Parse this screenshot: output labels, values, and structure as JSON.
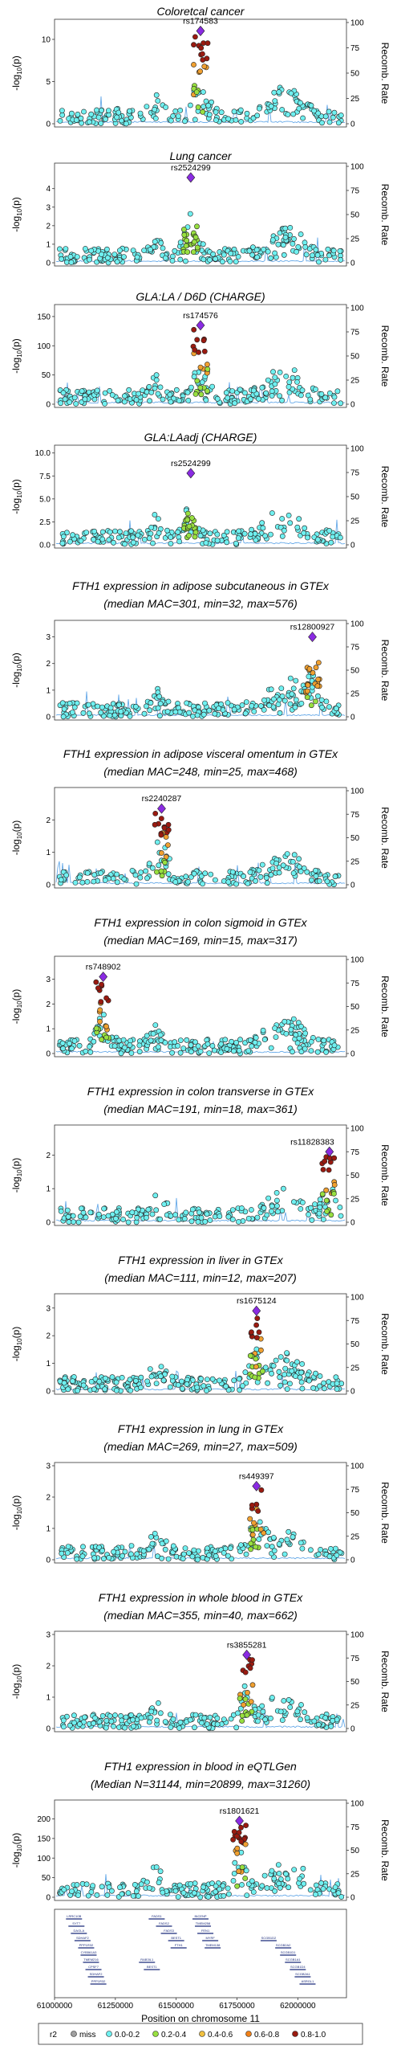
{
  "chart_data": {
    "type": "scatter",
    "description_axis": "Position on chromosome 11",
    "x_range": [
      61000000,
      62200000
    ],
    "x_ticks": [
      "61000000",
      "61250000",
      "61500000",
      "61750000",
      "62000000"
    ],
    "y_label": "-log10(p)",
    "y2_label": "Recomb. Rate",
    "y2_ticks": [
      "0",
      "25",
      "50",
      "75",
      "100"
    ],
    "panels": [
      {
        "title": "Coloretcal cancer",
        "lead": "rs174583",
        "lead_x": 61600000,
        "lead_y": 11.0,
        "ymax": 12,
        "yticks": [
          "0",
          "5",
          "10"
        ],
        "ytick_vals": [
          0,
          5,
          10
        ],
        "colors": [
          "red",
          "orange",
          "green",
          "cyan"
        ]
      },
      {
        "title": "Lung cancer",
        "lead": "rs2524299",
        "lead_x": 61560000,
        "lead_y": 4.6,
        "ymax": 5.2,
        "yticks": [
          "0",
          "1",
          "2",
          "3",
          "4"
        ],
        "ytick_vals": [
          0,
          1,
          2,
          3,
          4
        ],
        "colors": [
          "green",
          "cyan"
        ]
      },
      {
        "title": "GLA:LA / D6D (CHARGE)",
        "lead": "rs174576",
        "lead_x": 61600000,
        "lead_y": 135,
        "ymax": 165,
        "yticks": [
          "0",
          "50",
          "100",
          "150"
        ],
        "ytick_vals": [
          0,
          50,
          100,
          150
        ],
        "colors": [
          "red",
          "orange",
          "green",
          "cyan"
        ]
      },
      {
        "title": "GLA:LAadj (CHARGE)",
        "lead": "rs2524299",
        "lead_x": 61560000,
        "lead_y": 7.8,
        "ymax": 10.5,
        "yticks": [
          "0.0",
          "2.5",
          "5.0",
          "7.5",
          "10.0"
        ],
        "ytick_vals": [
          0,
          2.5,
          5,
          7.5,
          10
        ],
        "colors": [
          "green",
          "cyan"
        ]
      },
      {
        "title_line1": "FTH1 expression in adipose subcutaneous in GTEx",
        "title_line2": "(median MAC=301, min=32, max=576)",
        "lead": "rs12800927",
        "lead_x": 62060000,
        "lead_y": 3.0,
        "ymax": 3.5,
        "yticks": [
          "0",
          "1",
          "2",
          "3"
        ],
        "ytick_vals": [
          0,
          1,
          2,
          3
        ],
        "colors": [
          "orange",
          "green",
          "cyan"
        ]
      },
      {
        "title_line1": "FTH1 expression in adipose visceral omentum in GTEx",
        "title_line2": "(median MAC=248, min=25, max=468)",
        "lead": "rs2240287",
        "lead_x": 61440000,
        "lead_y": 2.35,
        "ymax": 2.9,
        "yticks": [
          "0",
          "1",
          "2"
        ],
        "ytick_vals": [
          0,
          1,
          2
        ],
        "colors": [
          "red",
          "orange",
          "green",
          "cyan"
        ]
      },
      {
        "title_line1": "FTH1 expression in colon sigmoid in GTEx",
        "title_line2": "(median MAC=169, min=15, max=317)",
        "lead": "rs748902",
        "lead_x": 61200000,
        "lead_y": 3.1,
        "ymax": 3.8,
        "yticks": [
          "0",
          "1",
          "2",
          "3"
        ],
        "ytick_vals": [
          0,
          1,
          2,
          3
        ],
        "colors": [
          "red",
          "orange",
          "cyan"
        ]
      },
      {
        "title_line1": "FTH1 expression in colon transverse in GTEx",
        "title_line2": "(median MAC=191, min=18, max=361)",
        "lead": "rs11828383",
        "lead_x": 62130000,
        "lead_y": 2.1,
        "ymax": 2.8,
        "yticks": [
          "0",
          "1",
          "2"
        ],
        "ytick_vals": [
          0,
          1,
          2
        ],
        "colors": [
          "red",
          "orange",
          "green",
          "cyan"
        ]
      },
      {
        "title_line1": "FTH1 expression in liver in GTEx",
        "title_line2": "(median MAC=111, min=12, max=207)",
        "lead": "rs1675124",
        "lead_x": 61830000,
        "lead_y": 2.9,
        "ymax": 3.4,
        "yticks": [
          "0",
          "1",
          "2",
          "3"
        ],
        "ytick_vals": [
          0,
          1,
          2,
          3
        ],
        "colors": [
          "red",
          "orange",
          "cyan"
        ]
      },
      {
        "title_line1": "FTH1 expression in lung in GTEx",
        "title_line2": "(median MAC=269, min=27, max=509)",
        "lead": "rs449397",
        "lead_x": 61830000,
        "lead_y": 2.35,
        "ymax": 3.0,
        "yticks": [
          "0",
          "1",
          "2",
          "3"
        ],
        "ytick_vals": [
          0,
          1,
          2,
          3
        ],
        "colors": [
          "red",
          "orange",
          "green",
          "cyan"
        ]
      },
      {
        "title_line1": "FTH1 expression in whole blood in GTEx",
        "title_line2": "(median MAC=355, min=40, max=662)",
        "lead": "rs3855281",
        "lead_x": 61790000,
        "lead_y": 2.35,
        "ymax": 3.0,
        "yticks": [
          "0",
          "1",
          "2",
          "3"
        ],
        "ytick_vals": [
          0,
          1,
          2,
          3
        ],
        "colors": [
          "red",
          "orange",
          "green",
          "cyan"
        ]
      },
      {
        "title_line1": "FTH1 expression in blood in eQTLGen",
        "title_line2": "(Median N=31144, min=20899, max=31260)",
        "lead": "rs1801621",
        "lead_x": 61760000,
        "lead_y": 195,
        "ymax": 240,
        "yticks": [
          "0",
          "50",
          "100",
          "150",
          "200"
        ],
        "ytick_vals": [
          0,
          50,
          100,
          150,
          200
        ],
        "colors": [
          "red",
          "orange",
          "green",
          "cyan"
        ]
      }
    ],
    "genes": [
      "LRRC10B",
      "SYT7",
      "DAGLA",
      "SDHAF2",
      "PPP1R32",
      "CYB561A3",
      "TMEM216",
      "CPSF7",
      "SDHAF2",
      "PPP1R32",
      "FADS1",
      "FADS2",
      "FADS3",
      "BEST1",
      "FTH1",
      "INCENP",
      "TMEM258",
      "FEN1",
      "MYRF",
      "TMEM138",
      "RAB3IL1",
      "BEST1",
      "SCGB1D2",
      "SCGB2A2",
      "SCGB1D1",
      "SCGB1A1",
      "SCGB1D4",
      "SCGB2A1",
      "ASRGL1"
    ],
    "legend": {
      "title": "r2",
      "items": [
        "miss",
        "0.0-0.2",
        "0.2-0.4",
        "0.4-0.6",
        "0.6-0.8",
        "0.8-1.0"
      ],
      "colors": [
        "#a0a0a0",
        "#6ff0f0",
        "#98e040",
        "#f0c040",
        "#f08018",
        "#9a1a10"
      ]
    }
  }
}
